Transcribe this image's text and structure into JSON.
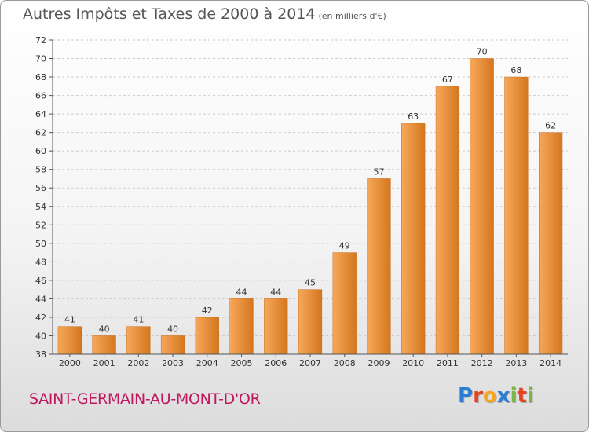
{
  "title": "Autres Impôts et Taxes de 2000 à 2014",
  "subtitle": "(en milliers d'€)",
  "commune": "SAINT-GERMAIN-AU-MONT-D'OR",
  "logo": {
    "text": "Proxiti",
    "letters": [
      {
        "ch": "P",
        "color": "#2a7fd4"
      },
      {
        "ch": "r",
        "color": "#e8421f"
      },
      {
        "ch": "o",
        "color": "#f5a623"
      },
      {
        "ch": "x",
        "color": "#2a7fd4"
      },
      {
        "ch": "i",
        "color": "#7ab648"
      },
      {
        "ch": "t",
        "color": "#e8421f"
      },
      {
        "ch": "i",
        "color": "#7ab648"
      }
    ]
  },
  "colors": {
    "bar_light": "#f7a85a",
    "bar_dark": "#d4761f",
    "axis": "#555555",
    "grid": "#cccccc"
  },
  "chart_data": {
    "type": "bar",
    "categories": [
      "2000",
      "2001",
      "2002",
      "2003",
      "2004",
      "2005",
      "2006",
      "2007",
      "2008",
      "2009",
      "2010",
      "2011",
      "2012",
      "2013",
      "2014"
    ],
    "values": [
      41,
      40,
      41,
      40,
      42,
      44,
      44,
      45,
      49,
      57,
      63,
      67,
      70,
      68,
      62
    ],
    "ylim": [
      38,
      72
    ],
    "yticks": [
      38,
      40,
      42,
      44,
      46,
      48,
      50,
      52,
      54,
      56,
      58,
      60,
      62,
      64,
      66,
      68,
      70,
      72
    ],
    "xlabel": "",
    "ylabel": ""
  }
}
